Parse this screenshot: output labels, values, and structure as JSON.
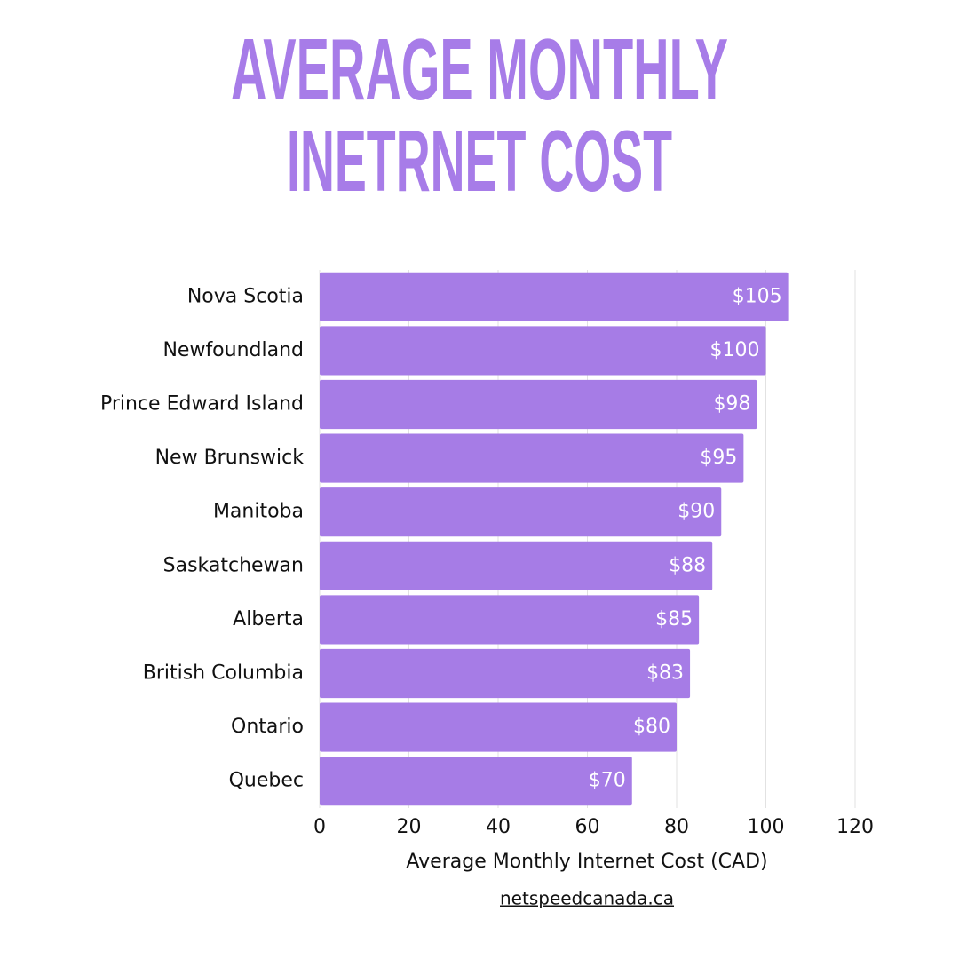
{
  "chart_data": {
    "type": "bar",
    "orientation": "horizontal",
    "title": [
      "AVERAGE MONTHLY",
      "INETRNET COST"
    ],
    "categories": [
      "Nova Scotia",
      "Newfoundland",
      "Prince Edward Island",
      "New Brunswick",
      "Manitoba",
      "Saskatchewan",
      "Alberta",
      "British Columbia",
      "Ontario",
      "Quebec"
    ],
    "values": [
      105,
      100,
      98,
      95,
      90,
      88,
      85,
      83,
      80,
      70
    ],
    "value_labels": [
      "$105",
      "$100",
      "$98",
      "$95",
      "$90",
      "$88",
      "$85",
      "$83",
      "$80",
      "$70"
    ],
    "color": "#a67ce6",
    "xlim": [
      0,
      120
    ],
    "xticks": [
      0,
      20,
      40,
      60,
      80,
      100,
      120
    ],
    "xlabel": "Average Monthly Internet Cost (CAD)",
    "grid": true,
    "source": "netspeedcanada.ca"
  }
}
